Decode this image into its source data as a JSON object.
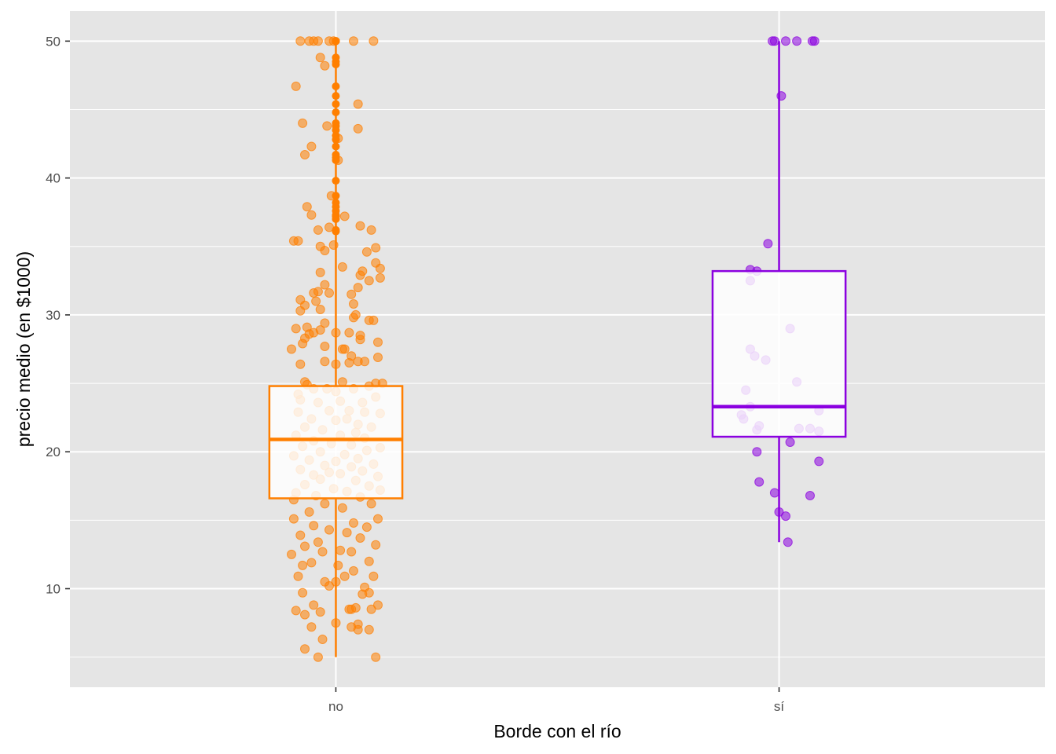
{
  "chart_data": {
    "type": "boxplot",
    "xlabel": "Borde con el río",
    "ylabel": "precio medio (en $1000)",
    "ylim": [
      2.8,
      52.2
    ],
    "yticks": [
      10,
      20,
      30,
      40,
      50
    ],
    "grid": true,
    "background": "#e5e5e5",
    "categories": [
      "no",
      "sí"
    ],
    "boxes": [
      {
        "category": "no",
        "color": "#ff7f00",
        "whisker_low": 5.0,
        "q1": 16.6,
        "median": 20.9,
        "q3": 24.8,
        "whisker_high": 50.0,
        "outliers": [
          36.1,
          36.2,
          37.0,
          37.2,
          37.3,
          37.6,
          37.9,
          38.2,
          38.7,
          39.8,
          41.3,
          41.5,
          41.7,
          42.3,
          42.8,
          43.1,
          43.5,
          43.8,
          44.0,
          44.8,
          45.4,
          46.0,
          46.7,
          48.3,
          48.5,
          48.8,
          50.0,
          50.0,
          50.0,
          50.0,
          50.0,
          50.0,
          50.0,
          50.0,
          50.0
        ]
      },
      {
        "category": "sí",
        "color": "#8b00e0",
        "whisker_low": 13.4,
        "q1": 21.1,
        "median": 23.3,
        "q3": 33.2,
        "whisker_high": 50.0,
        "outliers": []
      }
    ],
    "jitter_points": [
      {
        "category": "no",
        "color": "#ff7f00",
        "points": [
          [
            -0.16,
            50.0
          ],
          [
            -0.12,
            50.0
          ],
          [
            -0.1,
            50.0
          ],
          [
            -0.08,
            50.0
          ],
          [
            -0.03,
            50.0
          ],
          [
            -0.01,
            50.0
          ],
          [
            0.08,
            50.0
          ],
          [
            0.17,
            50.0
          ],
          [
            -0.07,
            48.8
          ],
          [
            -0.05,
            48.2
          ],
          [
            -0.18,
            46.7
          ],
          [
            0.1,
            45.4
          ],
          [
            -0.15,
            44.0
          ],
          [
            0.1,
            43.6
          ],
          [
            -0.04,
            43.8
          ],
          [
            -0.11,
            42.3
          ],
          [
            -0.14,
            41.7
          ],
          [
            0.01,
            41.3
          ],
          [
            0.01,
            42.9
          ],
          [
            0.04,
            37.2
          ],
          [
            -0.02,
            38.7
          ],
          [
            -0.13,
            37.9
          ],
          [
            -0.11,
            37.3
          ],
          [
            0.11,
            36.5
          ],
          [
            0.16,
            36.2
          ],
          [
            -0.08,
            36.2
          ],
          [
            -0.03,
            36.4
          ],
          [
            -0.19,
            35.4
          ],
          [
            -0.17,
            35.4
          ],
          [
            -0.01,
            35.1
          ],
          [
            0.14,
            34.6
          ],
          [
            -0.07,
            35.0
          ],
          [
            -0.05,
            34.7
          ],
          [
            0.18,
            34.9
          ],
          [
            0.18,
            33.8
          ],
          [
            0.03,
            33.5
          ],
          [
            0.12,
            33.2
          ],
          [
            0.11,
            32.9
          ],
          [
            -0.07,
            33.1
          ],
          [
            0.2,
            33.4
          ],
          [
            0.2,
            32.7
          ],
          [
            0.15,
            32.5
          ],
          [
            0.1,
            32.0
          ],
          [
            -0.05,
            32.2
          ],
          [
            -0.08,
            31.7
          ],
          [
            -0.1,
            31.6
          ],
          [
            -0.03,
            31.6
          ],
          [
            0.07,
            31.5
          ],
          [
            -0.16,
            31.1
          ],
          [
            -0.09,
            31.0
          ],
          [
            -0.14,
            30.7
          ],
          [
            -0.07,
            30.4
          ],
          [
            0.08,
            30.8
          ],
          [
            0.09,
            30.0
          ],
          [
            0.08,
            29.8
          ],
          [
            -0.16,
            30.3
          ],
          [
            0.15,
            29.6
          ],
          [
            -0.18,
            29.0
          ],
          [
            -0.13,
            29.1
          ],
          [
            -0.05,
            29.4
          ],
          [
            0.17,
            29.6
          ],
          [
            -0.07,
            28.9
          ],
          [
            -0.1,
            28.7
          ],
          [
            -0.12,
            28.6
          ],
          [
            0.0,
            28.7
          ],
          [
            0.06,
            28.7
          ],
          [
            0.11,
            28.5
          ],
          [
            -0.14,
            28.3
          ],
          [
            0.19,
            28.0
          ],
          [
            -0.15,
            27.9
          ],
          [
            0.11,
            28.2
          ],
          [
            -0.05,
            27.7
          ],
          [
            0.04,
            27.5
          ],
          [
            0.03,
            27.5
          ],
          [
            -0.2,
            27.5
          ],
          [
            0.07,
            27.0
          ],
          [
            0.0,
            26.4
          ],
          [
            -0.16,
            26.4
          ],
          [
            0.06,
            26.5
          ],
          [
            -0.05,
            26.6
          ],
          [
            0.1,
            26.6
          ],
          [
            0.13,
            26.6
          ],
          [
            -0.14,
            25.1
          ],
          [
            0.03,
            25.1
          ],
          [
            0.18,
            25.0
          ],
          [
            0.19,
            26.9
          ],
          [
            0.21,
            25.0
          ],
          [
            -0.13,
            24.9
          ],
          [
            -0.1,
            24.6
          ],
          [
            -0.04,
            24.6
          ],
          [
            0.0,
            24.4
          ],
          [
            0.15,
            24.8
          ],
          [
            0.08,
            24.6
          ],
          [
            -0.17,
            24.2
          ],
          [
            0.18,
            24.0
          ],
          [
            -0.16,
            23.8
          ],
          [
            0.12,
            23.6
          ],
          [
            0.02,
            23.7
          ],
          [
            -0.08,
            23.6
          ],
          [
            -0.03,
            23.0
          ],
          [
            0.06,
            23.0
          ],
          [
            0.13,
            22.9
          ],
          [
            0.2,
            22.8
          ],
          [
            -0.17,
            22.9
          ],
          [
            -0.11,
            22.4
          ],
          [
            0.0,
            22.3
          ],
          [
            0.05,
            22.4
          ],
          [
            0.1,
            22.0
          ],
          [
            -0.14,
            21.8
          ],
          [
            0.16,
            21.8
          ],
          [
            -0.06,
            21.6
          ],
          [
            0.09,
            21.4
          ],
          [
            -0.18,
            21.2
          ],
          [
            0.02,
            21.2
          ],
          [
            0.13,
            21.0
          ],
          [
            -0.1,
            20.8
          ],
          [
            -0.02,
            20.6
          ],
          [
            0.07,
            20.5
          ],
          [
            0.2,
            20.3
          ],
          [
            -0.15,
            20.4
          ],
          [
            0.14,
            20.1
          ],
          [
            -0.07,
            20.0
          ],
          [
            0.04,
            19.8
          ],
          [
            -0.19,
            19.7
          ],
          [
            0.1,
            19.5
          ],
          [
            -0.12,
            19.4
          ],
          [
            0.0,
            19.3
          ],
          [
            0.17,
            19.1
          ],
          [
            -0.05,
            19.0
          ],
          [
            0.07,
            18.9
          ],
          [
            -0.16,
            18.7
          ],
          [
            0.12,
            18.6
          ],
          [
            -0.03,
            18.5
          ],
          [
            0.02,
            18.4
          ],
          [
            -0.1,
            18.3
          ],
          [
            0.19,
            18.2
          ],
          [
            -0.07,
            18.0
          ],
          [
            0.09,
            17.9
          ],
          [
            -0.14,
            17.6
          ],
          [
            0.15,
            17.5
          ],
          [
            -0.01,
            17.3
          ],
          [
            0.05,
            17.1
          ],
          [
            0.2,
            17.2
          ],
          [
            -0.18,
            17.0
          ],
          [
            -0.09,
            16.8
          ],
          [
            0.11,
            16.7
          ],
          [
            -0.19,
            16.5
          ],
          [
            0.16,
            16.2
          ],
          [
            -0.05,
            16.2
          ],
          [
            0.03,
            15.9
          ],
          [
            -0.12,
            15.6
          ],
          [
            0.19,
            15.1
          ],
          [
            -0.19,
            15.1
          ],
          [
            0.08,
            14.8
          ],
          [
            -0.1,
            14.6
          ],
          [
            0.14,
            14.5
          ],
          [
            -0.03,
            14.3
          ],
          [
            0.05,
            14.1
          ],
          [
            -0.16,
            13.9
          ],
          [
            0.11,
            13.7
          ],
          [
            -0.08,
            13.4
          ],
          [
            0.18,
            13.2
          ],
          [
            -0.14,
            13.1
          ],
          [
            0.02,
            12.8
          ],
          [
            0.07,
            12.7
          ],
          [
            -0.06,
            12.7
          ],
          [
            -0.2,
            12.5
          ],
          [
            0.15,
            12.0
          ],
          [
            -0.11,
            11.9
          ],
          [
            -0.15,
            11.7
          ],
          [
            0.01,
            11.7
          ],
          [
            0.08,
            11.3
          ],
          [
            -0.17,
            10.9
          ],
          [
            0.17,
            10.9
          ],
          [
            -0.05,
            10.5
          ],
          [
            0.04,
            10.9
          ],
          [
            -0.03,
            10.2
          ],
          [
            0.13,
            10.1
          ],
          [
            0.12,
            9.6
          ],
          [
            -0.15,
            9.7
          ],
          [
            0.15,
            9.7
          ],
          [
            0.0,
            10.5
          ],
          [
            -0.1,
            8.8
          ],
          [
            -0.18,
            8.4
          ],
          [
            -0.14,
            8.1
          ],
          [
            0.06,
            8.5
          ],
          [
            0.09,
            8.6
          ],
          [
            0.07,
            8.5
          ],
          [
            0.16,
            8.5
          ],
          [
            0.19,
            8.8
          ],
          [
            -0.07,
            8.3
          ],
          [
            0.0,
            7.5
          ],
          [
            -0.11,
            7.2
          ],
          [
            0.07,
            7.2
          ],
          [
            0.1,
            7.0
          ],
          [
            0.1,
            7.4
          ],
          [
            0.15,
            7.0
          ],
          [
            -0.06,
            6.3
          ],
          [
            -0.14,
            5.6
          ],
          [
            -0.08,
            5.0
          ],
          [
            0.18,
            5.0
          ]
        ]
      },
      {
        "category": "sí",
        "color": "#8b00e0",
        "points": [
          [
            -0.02,
            50.0
          ],
          [
            -0.03,
            50.0
          ],
          [
            0.03,
            50.0
          ],
          [
            0.08,
            50.0
          ],
          [
            0.15,
            50.0
          ],
          [
            0.16,
            50.0
          ],
          [
            0.01,
            46.0
          ],
          [
            -0.05,
            35.2
          ],
          [
            -0.13,
            33.3
          ],
          [
            -0.1,
            33.2
          ],
          [
            -0.13,
            32.5
          ],
          [
            0.05,
            29.0
          ],
          [
            -0.13,
            27.5
          ],
          [
            -0.11,
            27.0
          ],
          [
            -0.06,
            26.7
          ],
          [
            0.08,
            25.1
          ],
          [
            -0.15,
            24.5
          ],
          [
            -0.13,
            23.3
          ],
          [
            0.18,
            23.0
          ],
          [
            -0.17,
            22.7
          ],
          [
            -0.16,
            22.4
          ],
          [
            -0.09,
            21.9
          ],
          [
            0.09,
            21.7
          ],
          [
            0.14,
            21.7
          ],
          [
            -0.1,
            21.6
          ],
          [
            0.18,
            21.5
          ],
          [
            0.05,
            20.7
          ],
          [
            -0.1,
            20.0
          ],
          [
            0.18,
            19.3
          ],
          [
            -0.09,
            17.8
          ],
          [
            -0.02,
            17.0
          ],
          [
            0.14,
            16.8
          ],
          [
            0.0,
            15.6
          ],
          [
            0.03,
            15.3
          ],
          [
            0.04,
            13.4
          ]
        ]
      }
    ]
  }
}
